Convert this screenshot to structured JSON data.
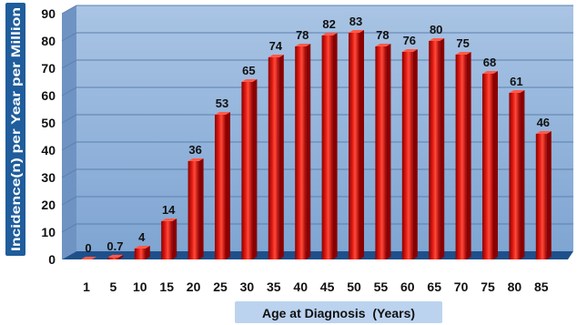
{
  "chart_data": {
    "type": "bar",
    "xlabel": "Age at Diagnosis  (Years)",
    "ylabel": "Incidence(n) per Year per Million",
    "categories": [
      "1",
      "5",
      "10",
      "15",
      "20",
      "25",
      "30",
      "35",
      "40",
      "45",
      "50",
      "55",
      "60",
      "65",
      "70",
      "75",
      "80",
      "85"
    ],
    "values": [
      0,
      0.7,
      4,
      14,
      36,
      53,
      65,
      74,
      78,
      82,
      83,
      78,
      76,
      80,
      75,
      68,
      61,
      46
    ],
    "data_labels": [
      "0",
      "0.7",
      "4",
      "14",
      "36",
      "53",
      "65",
      "74",
      "78",
      "82",
      "83",
      "78",
      "76",
      "80",
      "75",
      "68",
      "61",
      "46"
    ],
    "ylim": [
      0,
      90
    ],
    "yticks": [
      "0",
      "10",
      "20",
      "30",
      "40",
      "50",
      "60",
      "70",
      "80",
      "90"
    ],
    "grid": true,
    "colors": {
      "bar": "#cc1111",
      "bar_dark": "#8a0000",
      "bar_light": "#ff5a4a",
      "plot_bg": "#8fb2d9",
      "floor": "#1f4f8a",
      "ylabel_box": "#1f5d9c",
      "xlabel_box": "#bcd3ef"
    }
  }
}
